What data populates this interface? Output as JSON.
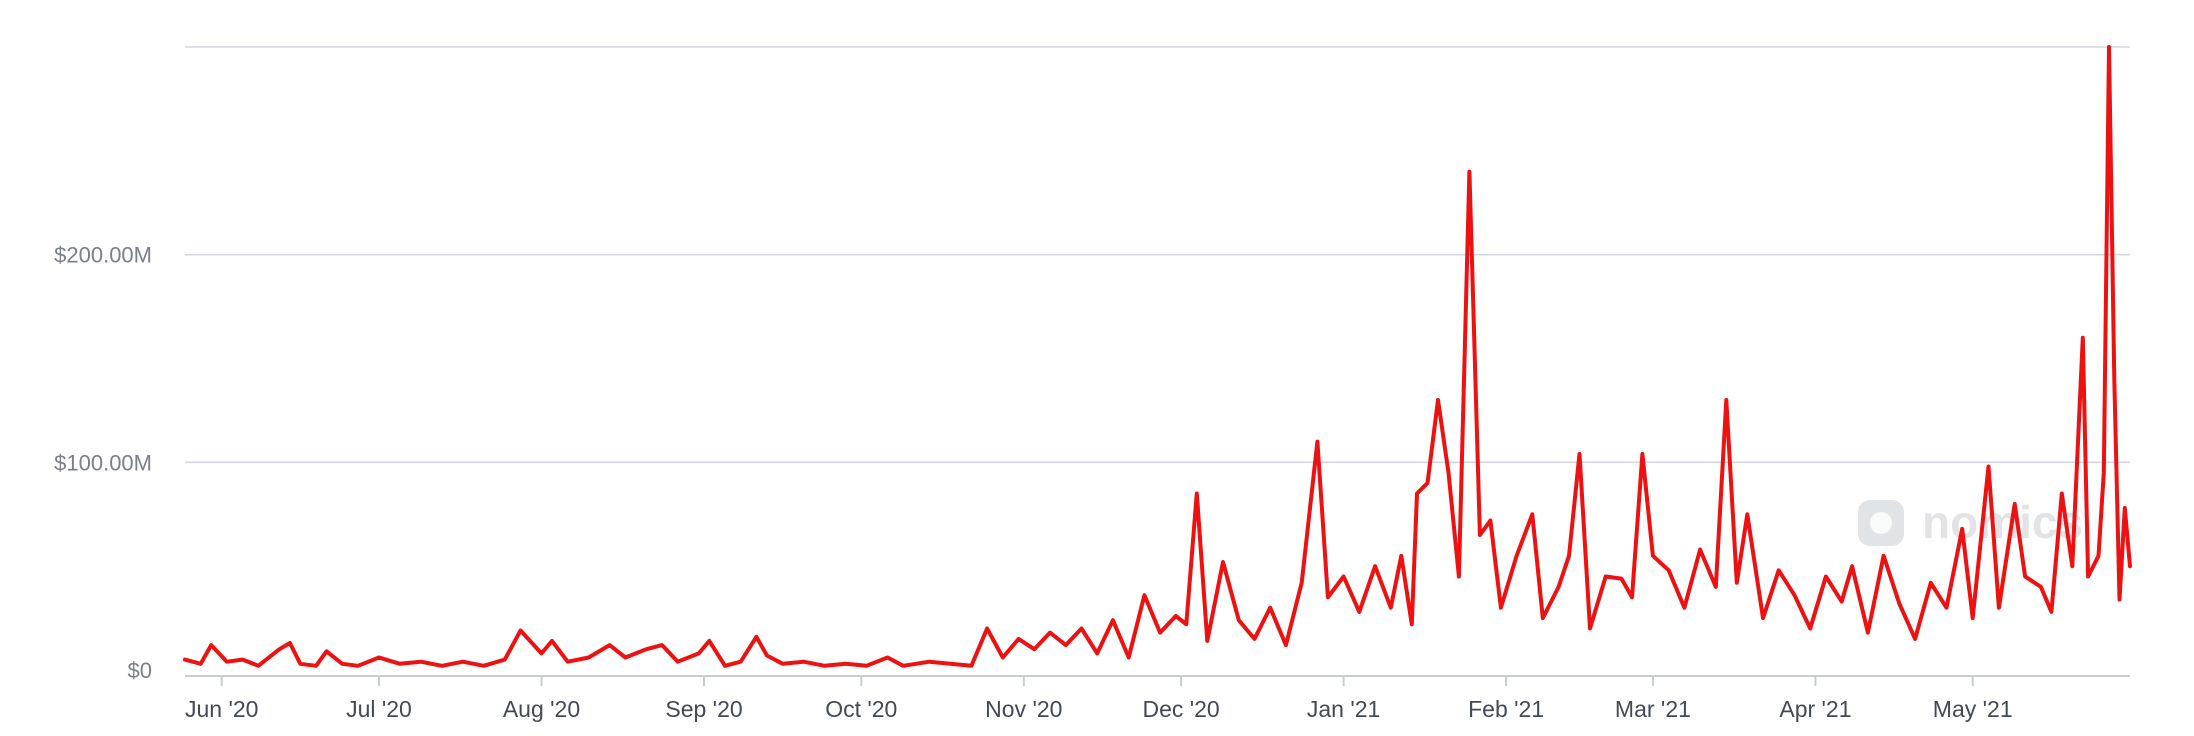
{
  "chart_data": {
    "type": "line",
    "title": "",
    "xlabel": "",
    "ylabel": "",
    "x_ticks": [
      "Jun '20",
      "Jul '20",
      "Aug '20",
      "Sep '20",
      "Oct '20",
      "Nov '20",
      "Dec '20",
      "Jan '21",
      "Feb '21",
      "Mar '21",
      "Apr '21",
      "May '21"
    ],
    "y_ticks": [
      {
        "value": 0,
        "label": "$0"
      },
      {
        "value": 100000000,
        "label": "$100.00M"
      },
      {
        "value": 200000000,
        "label": "$200.00M"
      },
      {
        "value": 300000000,
        "label": ""
      }
    ],
    "ylim": [
      0,
      300000000
    ],
    "xlim": [
      "2020-05-25",
      "2021-05-31"
    ],
    "grid": true,
    "legend": "none",
    "series": [
      {
        "color": "#ee1111",
        "points": [
          [
            "2020-05-25",
            5
          ],
          [
            "2020-05-28",
            3
          ],
          [
            "2020-05-30",
            12
          ],
          [
            "2020-06-02",
            4
          ],
          [
            "2020-06-05",
            5
          ],
          [
            "2020-06-08",
            2
          ],
          [
            "2020-06-12",
            10
          ],
          [
            "2020-06-14",
            13
          ],
          [
            "2020-06-16",
            3
          ],
          [
            "2020-06-19",
            2
          ],
          [
            "2020-06-21",
            9
          ],
          [
            "2020-06-24",
            3
          ],
          [
            "2020-06-27",
            2
          ],
          [
            "2020-07-01",
            6
          ],
          [
            "2020-07-05",
            3
          ],
          [
            "2020-07-09",
            4
          ],
          [
            "2020-07-13",
            2
          ],
          [
            "2020-07-17",
            4
          ],
          [
            "2020-07-21",
            2
          ],
          [
            "2020-07-25",
            5
          ],
          [
            "2020-07-28",
            19
          ],
          [
            "2020-08-01",
            8
          ],
          [
            "2020-08-03",
            14
          ],
          [
            "2020-08-06",
            4
          ],
          [
            "2020-08-10",
            6
          ],
          [
            "2020-08-14",
            12
          ],
          [
            "2020-08-17",
            6
          ],
          [
            "2020-08-21",
            10
          ],
          [
            "2020-08-24",
            12
          ],
          [
            "2020-08-27",
            4
          ],
          [
            "2020-08-31",
            8
          ],
          [
            "2020-09-02",
            14
          ],
          [
            "2020-09-05",
            2
          ],
          [
            "2020-09-08",
            4
          ],
          [
            "2020-09-11",
            16
          ],
          [
            "2020-09-13",
            7
          ],
          [
            "2020-09-16",
            3
          ],
          [
            "2020-09-20",
            4
          ],
          [
            "2020-09-24",
            2
          ],
          [
            "2020-09-28",
            3
          ],
          [
            "2020-10-02",
            2
          ],
          [
            "2020-10-06",
            6
          ],
          [
            "2020-10-09",
            2
          ],
          [
            "2020-10-14",
            4
          ],
          [
            "2020-10-18",
            3
          ],
          [
            "2020-10-22",
            2
          ],
          [
            "2020-10-25",
            20
          ],
          [
            "2020-10-28",
            6
          ],
          [
            "2020-10-31",
            15
          ],
          [
            "2020-11-03",
            10
          ],
          [
            "2020-11-06",
            18
          ],
          [
            "2020-11-09",
            12
          ],
          [
            "2020-11-12",
            20
          ],
          [
            "2020-11-15",
            8
          ],
          [
            "2020-11-18",
            24
          ],
          [
            "2020-11-21",
            6
          ],
          [
            "2020-11-24",
            36
          ],
          [
            "2020-11-27",
            18
          ],
          [
            "2020-11-30",
            26
          ],
          [
            "2020-12-02",
            22
          ],
          [
            "2020-12-04",
            85
          ],
          [
            "2020-12-06",
            14
          ],
          [
            "2020-12-09",
            52
          ],
          [
            "2020-12-12",
            24
          ],
          [
            "2020-12-15",
            15
          ],
          [
            "2020-12-18",
            30
          ],
          [
            "2020-12-21",
            12
          ],
          [
            "2020-12-24",
            42
          ],
          [
            "2020-12-27",
            110
          ],
          [
            "2020-12-29",
            35
          ],
          [
            "2021-01-01",
            45
          ],
          [
            "2021-01-04",
            28
          ],
          [
            "2021-01-07",
            50
          ],
          [
            "2021-01-10",
            30
          ],
          [
            "2021-01-12",
            55
          ],
          [
            "2021-01-14",
            22
          ],
          [
            "2021-01-15",
            85
          ],
          [
            "2021-01-17",
            90
          ],
          [
            "2021-01-19",
            130
          ],
          [
            "2021-01-21",
            95
          ],
          [
            "2021-01-23",
            45
          ],
          [
            "2021-01-25",
            240
          ],
          [
            "2021-01-27",
            65
          ],
          [
            "2021-01-29",
            72
          ],
          [
            "2021-01-31",
            30
          ],
          [
            "2021-02-03",
            55
          ],
          [
            "2021-02-06",
            75
          ],
          [
            "2021-02-08",
            25
          ],
          [
            "2021-02-11",
            40
          ],
          [
            "2021-02-13",
            55
          ],
          [
            "2021-02-15",
            104
          ],
          [
            "2021-02-17",
            20
          ],
          [
            "2021-02-20",
            45
          ],
          [
            "2021-02-23",
            44
          ],
          [
            "2021-02-25",
            35
          ],
          [
            "2021-02-27",
            104
          ],
          [
            "2021-03-01",
            55
          ],
          [
            "2021-03-04",
            48
          ],
          [
            "2021-03-07",
            30
          ],
          [
            "2021-03-10",
            58
          ],
          [
            "2021-03-13",
            40
          ],
          [
            "2021-03-15",
            130
          ],
          [
            "2021-03-17",
            42
          ],
          [
            "2021-03-19",
            75
          ],
          [
            "2021-03-22",
            25
          ],
          [
            "2021-03-25",
            48
          ],
          [
            "2021-03-28",
            36
          ],
          [
            "2021-03-31",
            20
          ],
          [
            "2021-04-03",
            45
          ],
          [
            "2021-04-06",
            33
          ],
          [
            "2021-04-08",
            50
          ],
          [
            "2021-04-11",
            18
          ],
          [
            "2021-04-14",
            55
          ],
          [
            "2021-04-17",
            32
          ],
          [
            "2021-04-20",
            15
          ],
          [
            "2021-04-23",
            42
          ],
          [
            "2021-04-26",
            30
          ],
          [
            "2021-04-29",
            68
          ],
          [
            "2021-05-01",
            25
          ],
          [
            "2021-05-04",
            98
          ],
          [
            "2021-05-06",
            30
          ],
          [
            "2021-05-09",
            80
          ],
          [
            "2021-05-11",
            45
          ],
          [
            "2021-05-14",
            40
          ],
          [
            "2021-05-16",
            28
          ],
          [
            "2021-05-18",
            85
          ],
          [
            "2021-05-20",
            50
          ],
          [
            "2021-05-22",
            160
          ],
          [
            "2021-05-23",
            45
          ],
          [
            "2021-05-25",
            55
          ],
          [
            "2021-05-26",
            95
          ],
          [
            "2021-05-27",
            300
          ],
          [
            "2021-05-28",
            140
          ],
          [
            "2021-05-29",
            34
          ],
          [
            "2021-05-30",
            78
          ],
          [
            "2021-05-31",
            50
          ]
        ]
      }
    ]
  },
  "watermark": {
    "icon": "nomics-logo-icon",
    "text": "nomics"
  }
}
